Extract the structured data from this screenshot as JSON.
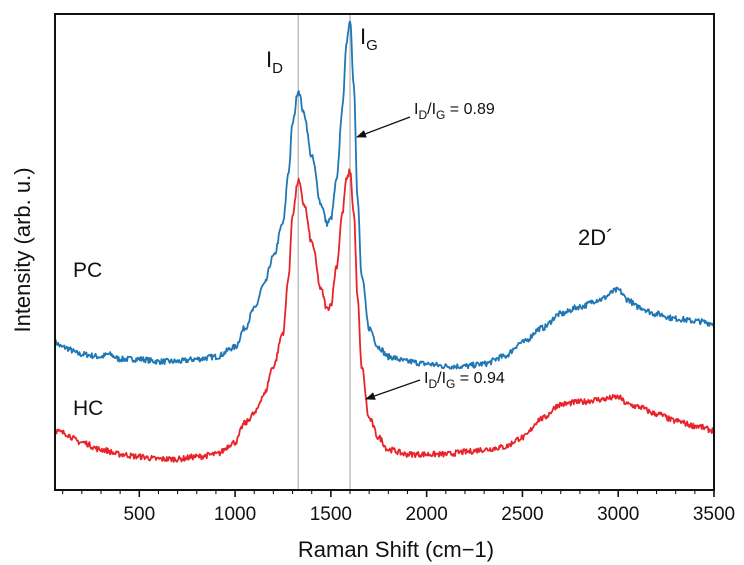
{
  "chart_data": {
    "type": "line",
    "xlabel": "Raman Shift (cm−1)",
    "ylabel": "Intensity (arb. u.)",
    "xlim": [
      60,
      3500
    ],
    "ylim": [
      0,
      1
    ],
    "x_ticks": [
      "500",
      "1000",
      "1500",
      "2000",
      "2500",
      "3000",
      "3500"
    ],
    "grid": false,
    "reference_lines_x": [
      1330,
      1600
    ],
    "series": [
      {
        "name": "PC",
        "color": "#1f77b4",
        "x": [
          60,
          100,
          200,
          300,
          340,
          400,
          500,
          600,
          700,
          800,
          900,
          1000,
          1050,
          1100,
          1150,
          1200,
          1250,
          1280,
          1300,
          1330,
          1360,
          1400,
          1450,
          1480,
          1500,
          1530,
          1560,
          1580,
          1600,
          1620,
          1640,
          1660,
          1700,
          1750,
          1800,
          1900,
          2000,
          2100,
          2200,
          2300,
          2400,
          2500,
          2600,
          2700,
          2800,
          2900,
          3000,
          3050,
          3100,
          3200,
          3300,
          3400,
          3500
        ],
        "y": [
          0.31,
          0.3,
          0.285,
          0.28,
          0.285,
          0.275,
          0.275,
          0.27,
          0.27,
          0.275,
          0.28,
          0.3,
          0.34,
          0.38,
          0.43,
          0.49,
          0.56,
          0.67,
          0.77,
          0.84,
          0.79,
          0.7,
          0.6,
          0.56,
          0.57,
          0.65,
          0.8,
          0.93,
          0.99,
          0.85,
          0.61,
          0.45,
          0.34,
          0.3,
          0.28,
          0.27,
          0.265,
          0.26,
          0.26,
          0.265,
          0.28,
          0.31,
          0.34,
          0.37,
          0.385,
          0.4,
          0.42,
          0.4,
          0.385,
          0.37,
          0.36,
          0.355,
          0.35
        ]
      },
      {
        "name": "HC",
        "color": "#e8242a",
        "x": [
          60,
          100,
          200,
          300,
          400,
          500,
          600,
          700,
          800,
          900,
          1000,
          1050,
          1100,
          1150,
          1200,
          1250,
          1280,
          1300,
          1330,
          1360,
          1400,
          1450,
          1480,
          1500,
          1530,
          1560,
          1580,
          1600,
          1620,
          1640,
          1660,
          1700,
          1750,
          1800,
          1900,
          2000,
          2100,
          2200,
          2300,
          2400,
          2500,
          2600,
          2700,
          2800,
          2900,
          3000,
          3050,
          3100,
          3200,
          3300,
          3400,
          3500
        ],
        "y": [
          0.125,
          0.12,
          0.1,
          0.085,
          0.075,
          0.07,
          0.065,
          0.065,
          0.07,
          0.075,
          0.1,
          0.14,
          0.16,
          0.2,
          0.26,
          0.33,
          0.45,
          0.58,
          0.65,
          0.6,
          0.52,
          0.42,
          0.38,
          0.39,
          0.47,
          0.58,
          0.65,
          0.67,
          0.58,
          0.4,
          0.26,
          0.15,
          0.11,
          0.085,
          0.075,
          0.075,
          0.075,
          0.08,
          0.085,
          0.09,
          0.11,
          0.15,
          0.18,
          0.185,
          0.19,
          0.195,
          0.18,
          0.175,
          0.16,
          0.145,
          0.135,
          0.125
        ]
      }
    ],
    "annotations": {
      "pc_label": "PC",
      "hc_label": "HC",
      "id_main": "I",
      "id_sub": "D",
      "ig_main": "I",
      "ig_sub": "G",
      "d2_label": "2D´",
      "ratio_pc": {
        "i1": "I",
        "s1": "D",
        "slash": "/I",
        "s2": "G",
        "val": " = 0.89"
      },
      "ratio_hc": {
        "i1": "I",
        "s1": "D",
        "slash": "/I",
        "s2": "G",
        "val": " = 0.94"
      }
    }
  }
}
